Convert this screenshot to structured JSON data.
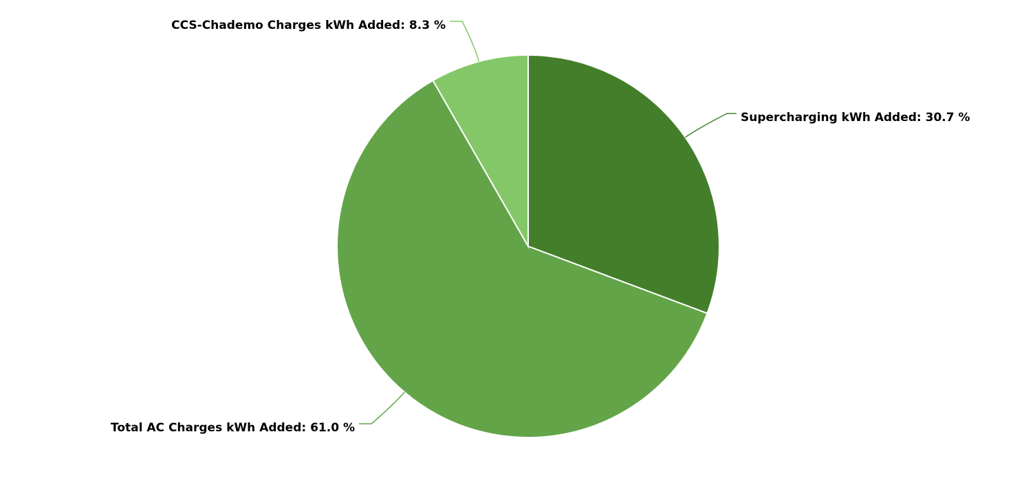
{
  "chart_data": {
    "type": "pie",
    "values": [
      30.7,
      61.0,
      8.3
    ],
    "value_labels": [
      "Supercharging kWh Added: 30.7 %",
      "Total AC Charges kWh Added: 61.0 %",
      "CCS-Chademo Charges kWh Added: 8.3 %"
    ],
    "colors": [
      "#437f2a",
      "#63a449",
      "#84c768"
    ]
  }
}
